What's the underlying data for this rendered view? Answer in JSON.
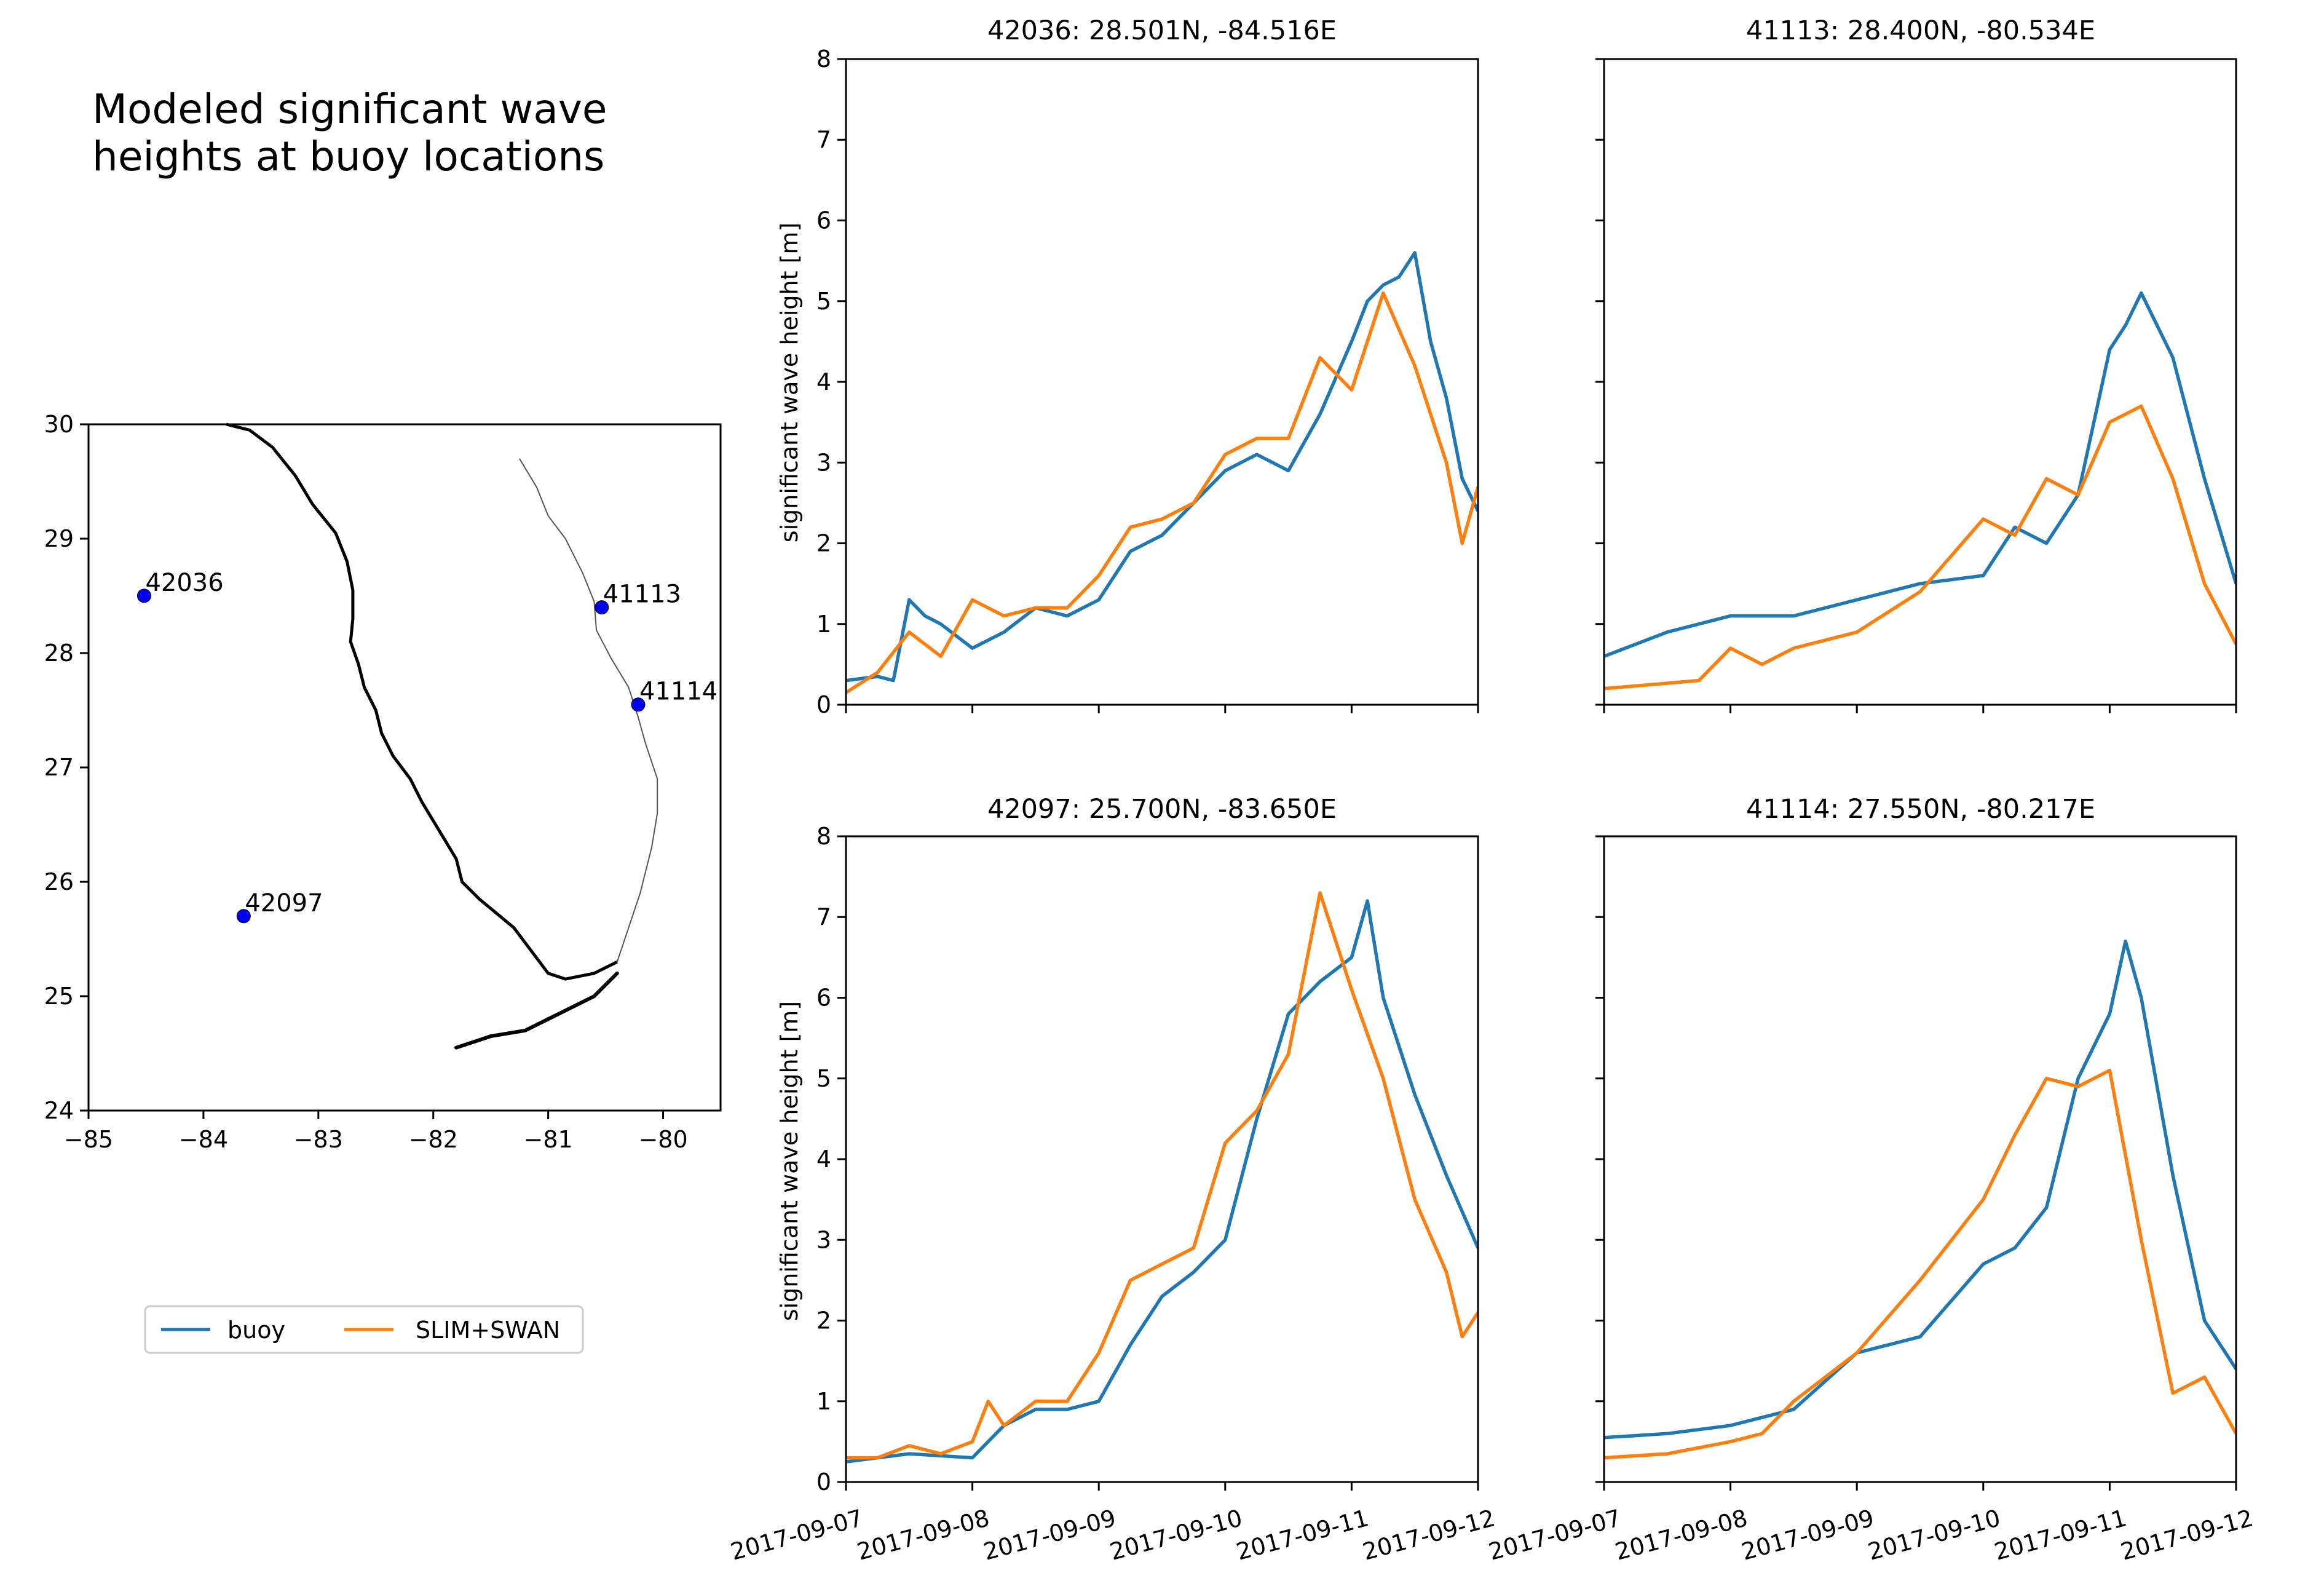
{
  "figure": {
    "title_lines": [
      "Modeled significant wave",
      "heights at buoy locations"
    ],
    "colors": {
      "buoy": "#1f77b4",
      "model": "#ff7f0e",
      "marker": "#0000ee"
    }
  },
  "map": {
    "xlim": [
      -85,
      -79.5
    ],
    "ylim": [
      24,
      30
    ],
    "xticks": [
      -85,
      -84,
      -83,
      -82,
      -81,
      -80
    ],
    "yticks": [
      24,
      25,
      26,
      27,
      28,
      29,
      30
    ],
    "xtick_labels": [
      "−85",
      "−84",
      "−83",
      "−82",
      "−81",
      "−80"
    ],
    "ytick_labels": [
      "24",
      "25",
      "26",
      "27",
      "28",
      "29",
      "30"
    ],
    "buoys": [
      {
        "id": "42036",
        "lon": -84.516,
        "lat": 28.501
      },
      {
        "id": "41113",
        "lon": -80.534,
        "lat": 28.4
      },
      {
        "id": "41114",
        "lon": -80.217,
        "lat": 27.55
      },
      {
        "id": "42097",
        "lon": -83.65,
        "lat": 25.7
      }
    ],
    "coastline_west": [
      [
        -83.8,
        30.0
      ],
      [
        -83.6,
        29.95
      ],
      [
        -83.4,
        29.8
      ],
      [
        -83.2,
        29.55
      ],
      [
        -83.05,
        29.3
      ],
      [
        -82.85,
        29.05
      ],
      [
        -82.75,
        28.8
      ],
      [
        -82.7,
        28.55
      ],
      [
        -82.7,
        28.3
      ],
      [
        -82.72,
        28.1
      ],
      [
        -82.65,
        27.9
      ],
      [
        -82.6,
        27.7
      ],
      [
        -82.5,
        27.5
      ],
      [
        -82.45,
        27.3
      ],
      [
        -82.35,
        27.1
      ],
      [
        -82.2,
        26.9
      ],
      [
        -82.1,
        26.7
      ],
      [
        -81.95,
        26.45
      ],
      [
        -81.8,
        26.2
      ],
      [
        -81.75,
        26.0
      ],
      [
        -81.6,
        25.85
      ],
      [
        -81.3,
        25.6
      ],
      [
        -81.15,
        25.4
      ],
      [
        -81.0,
        25.2
      ],
      [
        -80.85,
        25.15
      ],
      [
        -80.6,
        25.2
      ],
      [
        -80.4,
        25.3
      ]
    ],
    "coastline_east": [
      [
        -80.4,
        25.3
      ],
      [
        -80.3,
        25.6
      ],
      [
        -80.2,
        25.9
      ],
      [
        -80.1,
        26.3
      ],
      [
        -80.05,
        26.6
      ],
      [
        -80.05,
        26.9
      ],
      [
        -80.15,
        27.2
      ],
      [
        -80.22,
        27.45
      ],
      [
        -80.3,
        27.7
      ],
      [
        -80.45,
        27.95
      ],
      [
        -80.58,
        28.2
      ],
      [
        -80.6,
        28.45
      ],
      [
        -80.7,
        28.7
      ],
      [
        -80.85,
        29.0
      ],
      [
        -81.0,
        29.2
      ],
      [
        -81.1,
        29.45
      ],
      [
        -81.25,
        29.7
      ]
    ],
    "keys": [
      [
        -80.4,
        25.2
      ],
      [
        -80.6,
        25.0
      ],
      [
        -80.9,
        24.85
      ],
      [
        -81.2,
        24.7
      ],
      [
        -81.5,
        24.65
      ],
      [
        -81.8,
        24.55
      ]
    ]
  },
  "legend": {
    "entries": [
      "buoy",
      "SLIM+SWAN"
    ],
    "placement": "lower-left"
  },
  "chart_data": [
    {
      "type": "line",
      "title": "42036: 28.501N, -84.516E",
      "ylabel": "significant wave height [m]",
      "ylim": [
        0,
        8
      ],
      "xlim": [
        "2017-09-07",
        "2017-09-12"
      ],
      "xticks": [
        "2017-09-07",
        "2017-09-08",
        "2017-09-09",
        "2017-09-10",
        "2017-09-11",
        "2017-09-12"
      ],
      "yticks": [
        0,
        1,
        2,
        3,
        4,
        5,
        6,
        7,
        8
      ],
      "series": [
        {
          "name": "buoy",
          "x": [
            "2017-09-07 00:00",
            "2017-09-07 06:00",
            "2017-09-07 09:00",
            "2017-09-07 12:00",
            "2017-09-07 15:00",
            "2017-09-07 18:00",
            "2017-09-08 00:00",
            "2017-09-08 06:00",
            "2017-09-08 12:00",
            "2017-09-08 18:00",
            "2017-09-09 00:00",
            "2017-09-09 06:00",
            "2017-09-09 12:00",
            "2017-09-09 18:00",
            "2017-09-10 00:00",
            "2017-09-10 06:00",
            "2017-09-10 12:00",
            "2017-09-10 18:00",
            "2017-09-11 00:00",
            "2017-09-11 03:00",
            "2017-09-11 06:00",
            "2017-09-11 09:00",
            "2017-09-11 12:00",
            "2017-09-11 15:00",
            "2017-09-11 18:00",
            "2017-09-11 21:00",
            "2017-09-12 00:00"
          ],
          "y": [
            0.3,
            0.35,
            0.3,
            1.3,
            1.1,
            1.0,
            0.7,
            0.9,
            1.2,
            1.1,
            1.3,
            1.9,
            2.1,
            2.5,
            2.9,
            3.1,
            2.9,
            3.6,
            4.5,
            5.0,
            5.2,
            5.3,
            5.6,
            4.5,
            3.8,
            2.8,
            2.4
          ]
        },
        {
          "name": "SLIM+SWAN",
          "x": [
            "2017-09-07 00:00",
            "2017-09-07 06:00",
            "2017-09-07 12:00",
            "2017-09-07 18:00",
            "2017-09-08 00:00",
            "2017-09-08 06:00",
            "2017-09-08 12:00",
            "2017-09-08 18:00",
            "2017-09-09 00:00",
            "2017-09-09 06:00",
            "2017-09-09 12:00",
            "2017-09-09 18:00",
            "2017-09-10 00:00",
            "2017-09-10 06:00",
            "2017-09-10 12:00",
            "2017-09-10 18:00",
            "2017-09-11 00:00",
            "2017-09-11 03:00",
            "2017-09-11 06:00",
            "2017-09-11 12:00",
            "2017-09-11 18:00",
            "2017-09-11 21:00",
            "2017-09-12 00:00"
          ],
          "y": [
            0.15,
            0.4,
            0.9,
            0.6,
            1.3,
            1.1,
            1.2,
            1.2,
            1.6,
            2.2,
            2.3,
            2.5,
            3.1,
            3.3,
            3.3,
            4.3,
            3.9,
            4.5,
            5.1,
            4.2,
            3.0,
            2.0,
            2.7
          ]
        }
      ]
    },
    {
      "type": "line",
      "title": "41113: 28.400N, -80.534E",
      "ylabel": "",
      "ylim": [
        0,
        8
      ],
      "xlim": [
        "2017-09-07",
        "2017-09-12"
      ],
      "xticks": [
        "2017-09-07",
        "2017-09-08",
        "2017-09-09",
        "2017-09-10",
        "2017-09-11",
        "2017-09-12"
      ],
      "yticks": [
        0,
        1,
        2,
        3,
        4,
        5,
        6,
        7,
        8
      ],
      "series": [
        {
          "name": "buoy",
          "x": [
            "2017-09-07 00:00",
            "2017-09-07 12:00",
            "2017-09-08 00:00",
            "2017-09-08 12:00",
            "2017-09-09 00:00",
            "2017-09-09 12:00",
            "2017-09-10 00:00",
            "2017-09-10 06:00",
            "2017-09-10 12:00",
            "2017-09-10 18:00",
            "2017-09-11 00:00",
            "2017-09-11 03:00",
            "2017-09-11 06:00",
            "2017-09-11 12:00",
            "2017-09-11 18:00",
            "2017-09-12 00:00"
          ],
          "y": [
            0.6,
            0.9,
            1.1,
            1.1,
            1.3,
            1.5,
            1.6,
            2.2,
            2.0,
            2.6,
            4.4,
            4.7,
            5.1,
            4.3,
            2.8,
            1.5
          ]
        },
        {
          "name": "SLIM+SWAN",
          "x": [
            "2017-09-07 00:00",
            "2017-09-07 18:00",
            "2017-09-08 00:00",
            "2017-09-08 06:00",
            "2017-09-08 12:00",
            "2017-09-09 00:00",
            "2017-09-09 12:00",
            "2017-09-10 00:00",
            "2017-09-10 06:00",
            "2017-09-10 12:00",
            "2017-09-10 18:00",
            "2017-09-11 00:00",
            "2017-09-11 06:00",
            "2017-09-11 12:00",
            "2017-09-11 18:00",
            "2017-09-12 00:00"
          ],
          "y": [
            0.2,
            0.3,
            0.7,
            0.5,
            0.7,
            0.9,
            1.4,
            2.3,
            2.1,
            2.8,
            2.6,
            3.5,
            3.7,
            2.8,
            1.5,
            0.75
          ]
        }
      ]
    },
    {
      "type": "line",
      "title": "42097: 25.700N, -83.650E",
      "ylabel": "significant wave height [m]",
      "ylim": [
        0,
        8
      ],
      "xlim": [
        "2017-09-07",
        "2017-09-12"
      ],
      "xticks": [
        "2017-09-07",
        "2017-09-08",
        "2017-09-09",
        "2017-09-10",
        "2017-09-11",
        "2017-09-12"
      ],
      "yticks": [
        0,
        1,
        2,
        3,
        4,
        5,
        6,
        7,
        8
      ],
      "series": [
        {
          "name": "buoy",
          "x": [
            "2017-09-07 00:00",
            "2017-09-07 12:00",
            "2017-09-08 00:00",
            "2017-09-08 06:00",
            "2017-09-08 12:00",
            "2017-09-08 18:00",
            "2017-09-09 00:00",
            "2017-09-09 06:00",
            "2017-09-09 12:00",
            "2017-09-09 18:00",
            "2017-09-10 00:00",
            "2017-09-10 06:00",
            "2017-09-10 12:00",
            "2017-09-10 18:00",
            "2017-09-11 00:00",
            "2017-09-11 03:00",
            "2017-09-11 06:00",
            "2017-09-11 12:00",
            "2017-09-11 18:00",
            "2017-09-12 00:00"
          ],
          "y": [
            0.25,
            0.35,
            0.3,
            0.7,
            0.9,
            0.9,
            1.0,
            1.7,
            2.3,
            2.6,
            3.0,
            4.5,
            5.8,
            6.2,
            6.5,
            7.2,
            6.0,
            4.8,
            3.8,
            2.9
          ]
        },
        {
          "name": "SLIM+SWAN",
          "x": [
            "2017-09-07 00:00",
            "2017-09-07 06:00",
            "2017-09-07 12:00",
            "2017-09-07 18:00",
            "2017-09-08 00:00",
            "2017-09-08 03:00",
            "2017-09-08 06:00",
            "2017-09-08 12:00",
            "2017-09-08 18:00",
            "2017-09-09 00:00",
            "2017-09-09 06:00",
            "2017-09-09 12:00",
            "2017-09-09 18:00",
            "2017-09-10 00:00",
            "2017-09-10 06:00",
            "2017-09-10 12:00",
            "2017-09-10 18:00",
            "2017-09-11 00:00",
            "2017-09-11 06:00",
            "2017-09-11 12:00",
            "2017-09-11 18:00",
            "2017-09-11 21:00",
            "2017-09-12 00:00"
          ],
          "y": [
            0.3,
            0.3,
            0.45,
            0.35,
            0.5,
            1.0,
            0.7,
            1.0,
            1.0,
            1.6,
            2.5,
            2.7,
            2.9,
            4.2,
            4.6,
            5.3,
            7.3,
            6.1,
            5.0,
            3.5,
            2.6,
            1.8,
            2.1
          ]
        }
      ]
    },
    {
      "type": "line",
      "title": "41114: 27.550N, -80.217E",
      "ylabel": "",
      "ylim": [
        0,
        8
      ],
      "xlim": [
        "2017-09-07",
        "2017-09-12"
      ],
      "xticks": [
        "2017-09-07",
        "2017-09-08",
        "2017-09-09",
        "2017-09-10",
        "2017-09-11",
        "2017-09-12"
      ],
      "yticks": [
        0,
        1,
        2,
        3,
        4,
        5,
        6,
        7,
        8
      ],
      "series": [
        {
          "name": "buoy",
          "x": [
            "2017-09-07 00:00",
            "2017-09-07 12:00",
            "2017-09-08 00:00",
            "2017-09-08 12:00",
            "2017-09-09 00:00",
            "2017-09-09 12:00",
            "2017-09-10 00:00",
            "2017-09-10 06:00",
            "2017-09-10 12:00",
            "2017-09-10 18:00",
            "2017-09-11 00:00",
            "2017-09-11 03:00",
            "2017-09-11 06:00",
            "2017-09-11 12:00",
            "2017-09-11 18:00",
            "2017-09-12 00:00"
          ],
          "y": [
            0.55,
            0.6,
            0.7,
            0.9,
            1.6,
            1.8,
            2.7,
            2.9,
            3.4,
            5.0,
            5.8,
            6.7,
            6.0,
            3.8,
            2.0,
            1.4
          ]
        },
        {
          "name": "SLIM+SWAN",
          "x": [
            "2017-09-07 00:00",
            "2017-09-07 12:00",
            "2017-09-08 00:00",
            "2017-09-08 06:00",
            "2017-09-08 12:00",
            "2017-09-09 00:00",
            "2017-09-09 12:00",
            "2017-09-10 00:00",
            "2017-09-10 06:00",
            "2017-09-10 12:00",
            "2017-09-10 18:00",
            "2017-09-11 00:00",
            "2017-09-11 06:00",
            "2017-09-11 12:00",
            "2017-09-11 18:00",
            "2017-09-12 00:00"
          ],
          "y": [
            0.3,
            0.35,
            0.5,
            0.6,
            1.0,
            1.6,
            2.5,
            3.5,
            4.3,
            5.0,
            4.9,
            5.1,
            3.0,
            1.1,
            1.3,
            0.6
          ]
        }
      ]
    }
  ]
}
